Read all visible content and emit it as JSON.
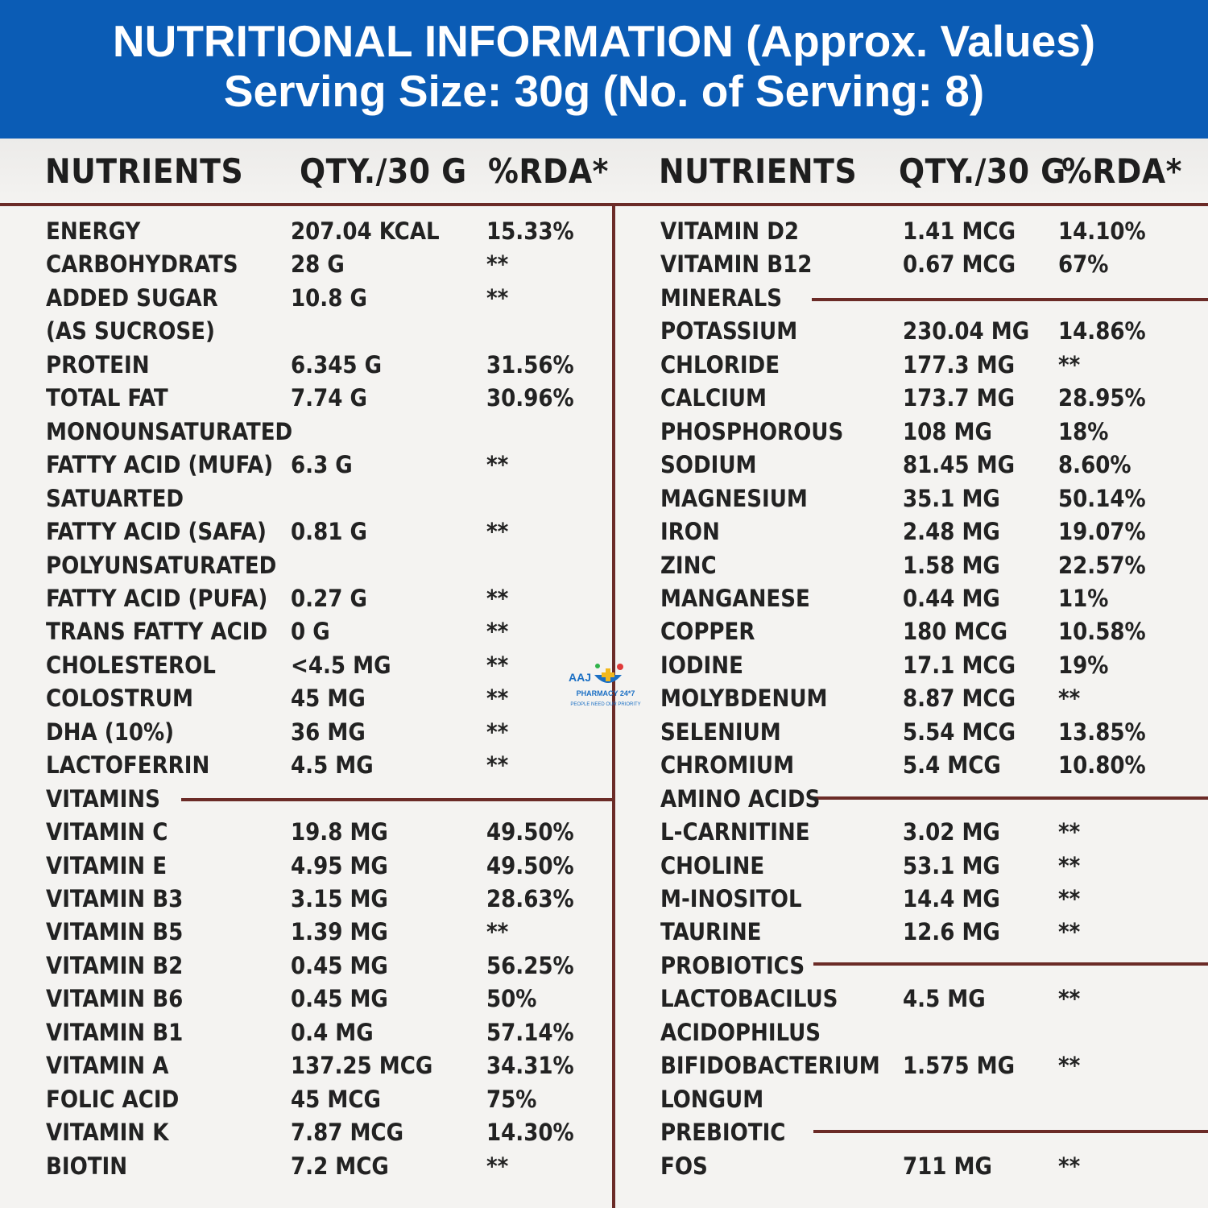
{
  "banner": {
    "title": "NUTRITIONAL INFORMATION (Approx. Values)",
    "subtitle": "Serving Size: 30g (No. of Serving: 8)"
  },
  "headers": {
    "nutrients": "NUTRIENTS",
    "qty": "QTY./30 G",
    "rda": "%RDA*"
  },
  "logo": {
    "mark": "AAJ",
    "name": "PHARMACY 24*7",
    "tagline": "PEOPLE NEED OUR PRIORITY"
  },
  "left_rows": [
    [
      "ENERGY",
      "207.04 KCAL",
      "15.33%"
    ],
    [
      "CARBOHYDRATS",
      "28 G",
      "**"
    ],
    [
      "ADDED SUGAR",
      "10.8 G",
      "**"
    ],
    [
      "(AS SUCROSE)",
      "",
      ""
    ],
    [
      "PROTEIN",
      "6.345 G",
      "31.56%"
    ],
    [
      "TOTAL FAT",
      "7.74 G",
      "30.96%"
    ],
    [
      "MONOUNSATURATED",
      "",
      ""
    ],
    [
      "FATTY ACID (MUFA)",
      "6.3 G",
      "**"
    ],
    [
      "SATUARTED",
      "",
      ""
    ],
    [
      "FATTY ACID (SAFA)",
      "0.81 G",
      "**"
    ],
    [
      "POLYUNSATURATED",
      "",
      ""
    ],
    [
      "FATTY ACID (PUFA)",
      "0.27 G",
      "**"
    ],
    [
      "TRANS FATTY ACID",
      "0 G",
      "**"
    ],
    [
      "CHOLESTEROL",
      "<4.5 MG",
      "**"
    ],
    [
      "COLOSTRUM",
      "45 MG",
      "**"
    ],
    [
      "DHA (10%)",
      "36 MG",
      "**"
    ],
    [
      "LACTOFERRIN",
      "4.5 MG",
      "**"
    ],
    [
      "VITAMINS",
      "",
      ""
    ],
    [
      "VITAMIN C",
      "19.8 MG",
      "49.50%"
    ],
    [
      "VITAMIN E",
      "4.95 MG",
      "49.50%"
    ],
    [
      "VITAMIN B3",
      "3.15 MG",
      "28.63%"
    ],
    [
      "VITAMIN B5",
      "1.39 MG",
      "**"
    ],
    [
      "VITAMIN B2",
      "0.45 MG",
      "56.25%"
    ],
    [
      "VITAMIN B6",
      "0.45 MG",
      "50%"
    ],
    [
      "VITAMIN B1",
      "0.4 MG",
      "57.14%"
    ],
    [
      "VITAMIN A",
      "137.25 MCG",
      "34.31%"
    ],
    [
      "FOLIC ACID",
      "45 MCG",
      "75%"
    ],
    [
      "VITAMIN K",
      "7.87 MCG",
      "14.30%"
    ],
    [
      "BIOTIN",
      "7.2 MCG",
      "**"
    ]
  ],
  "right_rows": [
    [
      "VITAMIN D2",
      "1.41 MCG",
      "14.10%"
    ],
    [
      "VITAMIN B12",
      "0.67 MCG",
      "67%"
    ],
    [
      "MINERALS",
      "",
      ""
    ],
    [
      "POTASSIUM",
      "230.04 MG",
      "14.86%"
    ],
    [
      "CHLORIDE",
      "177.3 MG",
      "**"
    ],
    [
      "CALCIUM",
      "173.7 MG",
      "28.95%"
    ],
    [
      "PHOSPHOROUS",
      "108 MG",
      "18%"
    ],
    [
      "SODIUM",
      "81.45 MG",
      "8.60%"
    ],
    [
      "MAGNESIUM",
      "35.1 MG",
      "50.14%"
    ],
    [
      "IRON",
      "2.48 MG",
      "19.07%"
    ],
    [
      "ZINC",
      "1.58 MG",
      "22.57%"
    ],
    [
      "MANGANESE",
      "0.44 MG",
      "11%"
    ],
    [
      "COPPER",
      "180 MCG",
      "10.58%"
    ],
    [
      "IODINE",
      "17.1 MCG",
      "19%"
    ],
    [
      "MOLYBDENUM",
      "8.87 MCG",
      "**"
    ],
    [
      "SELENIUM",
      "5.54 MCG",
      "13.85%"
    ],
    [
      "CHROMIUM",
      "5.4 MCG",
      "10.80%"
    ],
    [
      "AMINO ACIDS",
      "",
      ""
    ],
    [
      "L-CARNITINE",
      "3.02 MG",
      "**"
    ],
    [
      "CHOLINE",
      "53.1 MG",
      "**"
    ],
    [
      "M-INOSITOL",
      "14.4 MG",
      "**"
    ],
    [
      "TAURINE",
      "12.6 MG",
      "**"
    ],
    [
      "PROBIOTICS",
      "",
      ""
    ],
    [
      "LACTOBACILUS",
      "4.5 MG",
      "**"
    ],
    [
      "ACIDOPHILUS",
      "",
      ""
    ],
    [
      "BIFIDOBACTERIUM",
      "1.575 MG",
      "**"
    ],
    [
      "LONGUM",
      "",
      ""
    ],
    [
      "PREBIOTIC",
      "",
      ""
    ],
    [
      "FOS",
      "711 MG",
      "**"
    ]
  ]
}
